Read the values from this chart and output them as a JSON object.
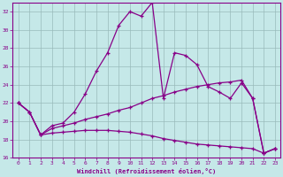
{
  "xlabel": "Windchill (Refroidissement éolien,°C)",
  "xlim": [
    -0.5,
    23.5
  ],
  "ylim": [
    16,
    33
  ],
  "yticks": [
    16,
    18,
    20,
    22,
    24,
    26,
    28,
    30,
    32
  ],
  "xticks": [
    0,
    1,
    2,
    3,
    4,
    5,
    6,
    7,
    8,
    9,
    10,
    11,
    12,
    13,
    14,
    15,
    16,
    17,
    18,
    19,
    20,
    21,
    22,
    23
  ],
  "bg_color": "#c5e8e8",
  "line_color": "#880088",
  "grid_color": "#99bbbb",
  "lines": [
    {
      "x": [
        0,
        1,
        2,
        3,
        4,
        5,
        6,
        7,
        8,
        9,
        10,
        11,
        12,
        13,
        14,
        15,
        16,
        17,
        18,
        19,
        20,
        21,
        22,
        23
      ],
      "y": [
        22,
        21,
        18.5,
        19.5,
        19.8,
        21.0,
        23.0,
        25.5,
        27.5,
        30.5,
        32.0,
        31.5,
        33.0,
        22.5,
        27.5,
        27.2,
        26.2,
        23.8,
        23.2,
        22.5,
        24.2,
        22.5,
        16.5,
        17.0
      ]
    },
    {
      "x": [
        0,
        1,
        2,
        3,
        4,
        5,
        6,
        7,
        8,
        9,
        10,
        11,
        12,
        13,
        14,
        15,
        16,
        17,
        18,
        19,
        20,
        21,
        22,
        23
      ],
      "y": [
        22.0,
        21.0,
        18.5,
        19.2,
        19.5,
        19.8,
        20.2,
        20.5,
        20.8,
        21.2,
        21.5,
        22.0,
        22.5,
        22.8,
        23.2,
        23.5,
        23.8,
        24.0,
        24.2,
        24.3,
        24.5,
        22.5,
        16.5,
        17.0
      ]
    },
    {
      "x": [
        0,
        1,
        2,
        3,
        4,
        5,
        6,
        7,
        8,
        9,
        10,
        11,
        12,
        13,
        14,
        15,
        16,
        17,
        18,
        19,
        20,
        21,
        22,
        23
      ],
      "y": [
        22.0,
        21.0,
        18.5,
        18.7,
        18.8,
        18.9,
        19.0,
        19.0,
        19.0,
        18.9,
        18.8,
        18.6,
        18.4,
        18.1,
        17.9,
        17.7,
        17.5,
        17.4,
        17.3,
        17.2,
        17.1,
        17.0,
        16.5,
        17.0
      ]
    }
  ]
}
